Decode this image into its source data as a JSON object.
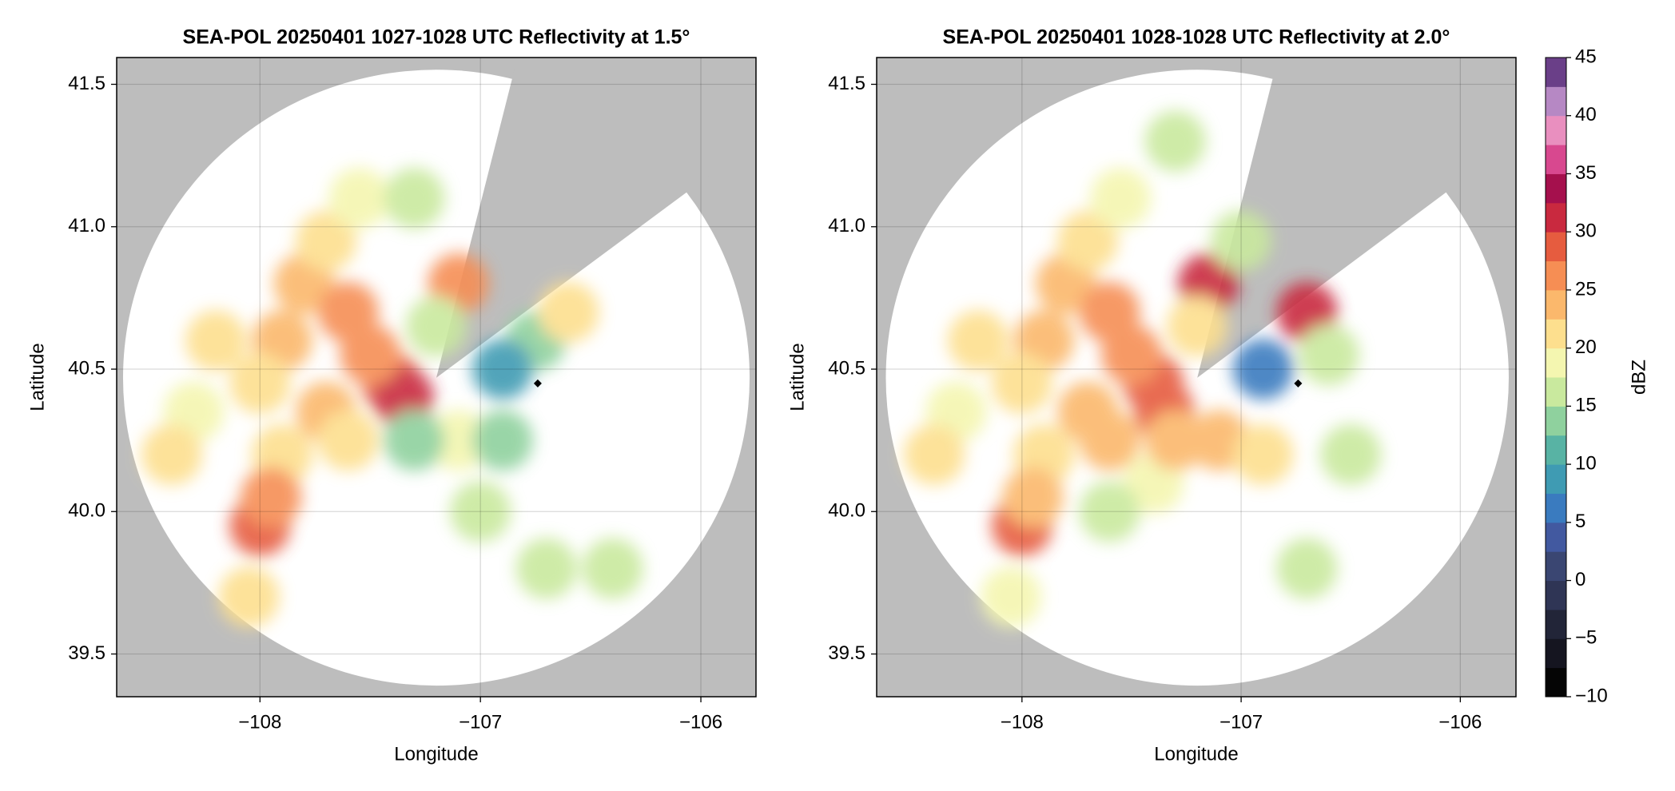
{
  "chart_data": [
    {
      "type": "radar",
      "title": "SEA-POL 20250401 1027-1028 UTC Reflectivity at 1.5°",
      "x_label": "Longitude",
      "y_label": "Latitude",
      "xlim": [
        -108.65,
        -105.75
      ],
      "ylim": [
        39.35,
        41.594
      ],
      "xticks": [
        {
          "value": -108,
          "label": "−108"
        },
        {
          "value": -107,
          "label": "−107"
        },
        {
          "value": -106,
          "label": "−106"
        }
      ],
      "yticks": [
        39.5,
        {
          "value": 40,
          "label": "40.0"
        },
        40.5,
        {
          "value": 41,
          "label": "41.0"
        },
        41.5
      ],
      "grid": true,
      "radar": {
        "lon": -107.2,
        "lat": 40.47,
        "range_km": 120,
        "blocked_az": [
          14,
          53
        ]
      },
      "marker": {
        "lon": -106.74,
        "lat": 40.45
      },
      "echoes": [
        {
          "lon": -107.8,
          "lat": 40.8,
          "dbz": 24
        },
        {
          "lon": -107.6,
          "lat": 40.7,
          "dbz": 25
        },
        {
          "lon": -107.9,
          "lat": 40.6,
          "dbz": 24
        },
        {
          "lon": -107.4,
          "lat": 40.45,
          "dbz": 28
        },
        {
          "lon": -107.35,
          "lat": 40.4,
          "dbz": 30
        },
        {
          "lon": -107.5,
          "lat": 40.55,
          "dbz": 26
        },
        {
          "lon": -107.7,
          "lat": 40.95,
          "dbz": 22
        },
        {
          "lon": -107.55,
          "lat": 41.1,
          "dbz": 18
        },
        {
          "lon": -107.3,
          "lat": 41.1,
          "dbz": 15
        },
        {
          "lon": -107.1,
          "lat": 40.8,
          "dbz": 27
        },
        {
          "lon": -107.2,
          "lat": 40.65,
          "dbz": 16
        },
        {
          "lon": -108.0,
          "lat": 40.45,
          "dbz": 20
        },
        {
          "lon": -108.3,
          "lat": 40.35,
          "dbz": 18
        },
        {
          "lon": -108.4,
          "lat": 40.2,
          "dbz": 22
        },
        {
          "lon": -107.9,
          "lat": 40.2,
          "dbz": 20
        },
        {
          "lon": -108.0,
          "lat": 39.95,
          "dbz": 28
        },
        {
          "lon": -107.95,
          "lat": 40.05,
          "dbz": 25
        },
        {
          "lon": -108.05,
          "lat": 39.7,
          "dbz": 22
        },
        {
          "lon": -107.1,
          "lat": 40.25,
          "dbz": 18
        },
        {
          "lon": -106.9,
          "lat": 40.25,
          "dbz": 14
        },
        {
          "lon": -106.75,
          "lat": 40.6,
          "dbz": 14
        },
        {
          "lon": -106.6,
          "lat": 40.7,
          "dbz": 22
        },
        {
          "lon": -106.9,
          "lat": 40.5,
          "dbz": 8
        },
        {
          "lon": -107.0,
          "lat": 40.0,
          "dbz": 15
        },
        {
          "lon": -106.7,
          "lat": 39.8,
          "dbz": 16
        },
        {
          "lon": -106.4,
          "lat": 39.8,
          "dbz": 17
        },
        {
          "lon": -107.3,
          "lat": 40.25,
          "dbz": 14
        },
        {
          "lon": -108.2,
          "lat": 40.6,
          "dbz": 22
        },
        {
          "lon": -107.7,
          "lat": 40.35,
          "dbz": 24
        },
        {
          "lon": -107.6,
          "lat": 40.25,
          "dbz": 22
        }
      ]
    },
    {
      "type": "radar",
      "title": "SEA-POL 20250401 1028-1028 UTC Reflectivity at 2.0°",
      "x_label": "Longitude",
      "y_label": "Latitude",
      "xlim": [
        -108.663,
        -105.746
      ],
      "ylim": [
        39.35,
        41.594
      ],
      "xticks": [
        {
          "value": -108,
          "label": "−108"
        },
        {
          "value": -107,
          "label": "−107"
        },
        {
          "value": -106,
          "label": "−106"
        }
      ],
      "yticks": [
        39.5,
        {
          "value": 40,
          "label": "40.0"
        },
        40.5,
        {
          "value": 41,
          "label": "41.0"
        },
        41.5
      ],
      "grid": true,
      "radar": {
        "lon": -107.2,
        "lat": 40.47,
        "range_km": 120,
        "blocked_az": [
          14,
          53
        ]
      },
      "marker": {
        "lon": -106.74,
        "lat": 40.45
      },
      "echoes": [
        {
          "lon": -107.8,
          "lat": 40.8,
          "dbz": 24
        },
        {
          "lon": -107.6,
          "lat": 40.7,
          "dbz": 25
        },
        {
          "lon": -107.9,
          "lat": 40.6,
          "dbz": 24
        },
        {
          "lon": -107.4,
          "lat": 40.45,
          "dbz": 28
        },
        {
          "lon": -107.35,
          "lat": 40.35,
          "dbz": 28
        },
        {
          "lon": -107.5,
          "lat": 40.55,
          "dbz": 26
        },
        {
          "lon": -107.7,
          "lat": 40.95,
          "dbz": 22
        },
        {
          "lon": -107.55,
          "lat": 41.1,
          "dbz": 18
        },
        {
          "lon": -107.3,
          "lat": 41.3,
          "dbz": 16
        },
        {
          "lon": -107.15,
          "lat": 40.8,
          "dbz": 30
        },
        {
          "lon": -107.2,
          "lat": 40.65,
          "dbz": 20
        },
        {
          "lon": -108.0,
          "lat": 40.45,
          "dbz": 20
        },
        {
          "lon": -108.3,
          "lat": 40.35,
          "dbz": 18
        },
        {
          "lon": -108.4,
          "lat": 40.2,
          "dbz": 20
        },
        {
          "lon": -107.9,
          "lat": 40.2,
          "dbz": 20
        },
        {
          "lon": -108.0,
          "lat": 39.95,
          "dbz": 28
        },
        {
          "lon": -107.95,
          "lat": 40.05,
          "dbz": 24
        },
        {
          "lon": -108.05,
          "lat": 39.7,
          "dbz": 18
        },
        {
          "lon": -107.1,
          "lat": 40.25,
          "dbz": 24
        },
        {
          "lon": -106.9,
          "lat": 40.2,
          "dbz": 22
        },
        {
          "lon": -106.7,
          "lat": 40.7,
          "dbz": 30
        },
        {
          "lon": -106.6,
          "lat": 40.55,
          "dbz": 15
        },
        {
          "lon": -106.9,
          "lat": 40.5,
          "dbz": 6
        },
        {
          "lon": -106.5,
          "lat": 40.2,
          "dbz": 16
        },
        {
          "lon": -107.4,
          "lat": 40.1,
          "dbz": 18
        },
        {
          "lon": -107.6,
          "lat": 40.0,
          "dbz": 17
        },
        {
          "lon": -107.3,
          "lat": 40.25,
          "dbz": 24
        },
        {
          "lon": -108.2,
          "lat": 40.6,
          "dbz": 22
        },
        {
          "lon": -107.7,
          "lat": 40.35,
          "dbz": 24
        },
        {
          "lon": -107.6,
          "lat": 40.25,
          "dbz": 24
        },
        {
          "lon": -106.7,
          "lat": 39.8,
          "dbz": 16
        },
        {
          "lon": -107.0,
          "lat": 40.95,
          "dbz": 17
        }
      ],
      "colorbar": {
        "label": "dBZ",
        "lim": [
          -10,
          45
        ],
        "ticks": [
          {
            "value": -10,
            "label": "−10"
          },
          {
            "value": -5,
            "label": "−5"
          },
          0,
          5,
          10,
          15,
          20,
          25,
          30,
          35,
          40,
          45
        ],
        "colors": [
          "#050505",
          "#151520",
          "#222538",
          "#2f3555",
          "#3a4672",
          "#4259a0",
          "#3a7bbf",
          "#3f9bb3",
          "#58b3a4",
          "#8fd19e",
          "#c9e99e",
          "#f4f6b0",
          "#fddf8e",
          "#fbb86c",
          "#f68e54",
          "#e65c3f",
          "#c9293f",
          "#a5104d",
          "#d8488f",
          "#e98fbf",
          "#b688c4",
          "#6a3f88"
        ]
      }
    }
  ]
}
